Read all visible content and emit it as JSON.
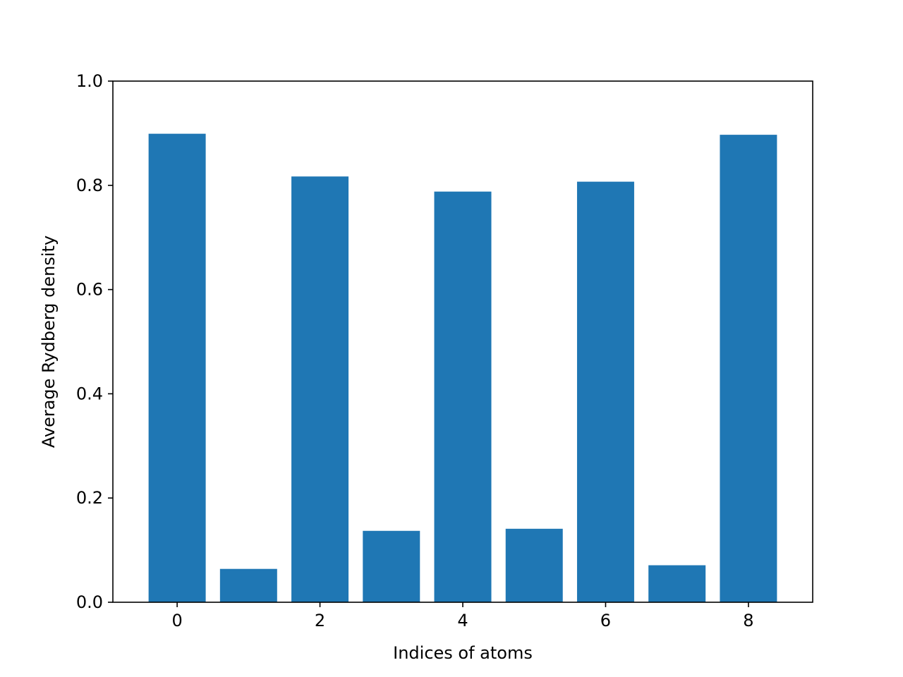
{
  "chart_data": {
    "type": "bar",
    "x": [
      0,
      1,
      2,
      3,
      4,
      5,
      6,
      7,
      8
    ],
    "values": [
      0.899,
      0.064,
      0.817,
      0.137,
      0.788,
      0.141,
      0.807,
      0.071,
      0.897
    ],
    "color": "#1f77b4",
    "xlabel": "Indices of atoms",
    "ylabel": "Average Rydberg density",
    "xlim": [
      -0.9,
      8.9
    ],
    "ylim": [
      0.0,
      1.0
    ],
    "x_ticks": [
      0,
      2,
      4,
      6,
      8
    ],
    "x_tick_labels": [
      "0",
      "2",
      "4",
      "6",
      "8"
    ],
    "y_ticks": [
      0.0,
      0.2,
      0.4,
      0.6,
      0.8,
      1.0
    ],
    "y_tick_labels": [
      "0.0",
      "0.2",
      "0.4",
      "0.6",
      "0.8",
      "1.0"
    ],
    "grid": false,
    "legend": "none"
  }
}
